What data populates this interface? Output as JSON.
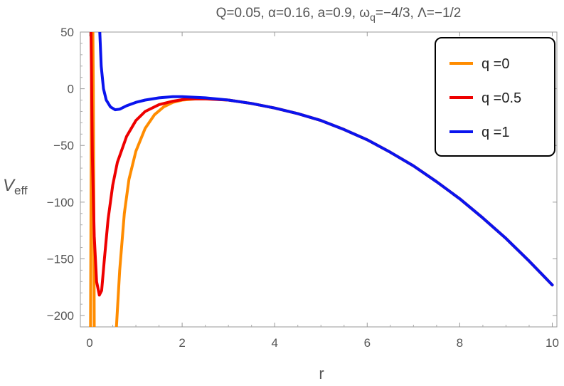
{
  "chart_data": {
    "type": "line",
    "title": "Q=0.05, α=0.16, a=0.9, ω",
    "title_sub": "q",
    "title_tail": "=−4/3, Λ=−1/2",
    "xlabel": "r",
    "ylabel": "V",
    "ylabel_sub": "eff",
    "xlim": [
      -0.2,
      10.1
    ],
    "ylim": [
      -210,
      50
    ],
    "x_ticks": [
      0,
      2,
      4,
      6,
      8,
      10
    ],
    "x_tick_labels": [
      "0",
      "2",
      "4",
      "6",
      "8",
      "10"
    ],
    "y_ticks": [
      50,
      0,
      -50,
      -100,
      -150,
      -200
    ],
    "y_tick_labels": [
      "50",
      "0",
      "−50",
      "−100",
      "−150",
      "−200"
    ],
    "legend_position": "top-right",
    "series": [
      {
        "name": "q =0",
        "color": "#ff8c00",
        "segments": [
          [
            [
              0.02,
              -210
            ],
            [
              0.03,
              -100
            ],
            [
              0.04,
              0
            ],
            [
              0.05,
              50
            ]
          ],
          [
            [
              0.07,
              50
            ],
            [
              0.08,
              0
            ],
            [
              0.09,
              -100
            ],
            [
              0.1,
              -210
            ]
          ],
          [
            [
              0.58,
              -210
            ],
            [
              0.65,
              -160
            ],
            [
              0.75,
              -110
            ],
            [
              0.85,
              -80
            ],
            [
              1.0,
              -55
            ],
            [
              1.2,
              -35
            ],
            [
              1.4,
              -23
            ],
            [
              1.6,
              -16
            ],
            [
              1.8,
              -12
            ],
            [
              2.0,
              -10
            ],
            [
              2.3,
              -9
            ],
            [
              2.6,
              -9
            ],
            [
              3.0,
              -10
            ],
            [
              3.5,
              -13
            ],
            [
              4.0,
              -17
            ],
            [
              4.5,
              -22
            ],
            [
              5.0,
              -28
            ],
            [
              5.5,
              -36
            ],
            [
              6.0,
              -45
            ],
            [
              6.5,
              -56
            ],
            [
              7.0,
              -68
            ],
            [
              7.5,
              -82
            ],
            [
              8.0,
              -97
            ],
            [
              8.5,
              -114
            ],
            [
              9.0,
              -132
            ],
            [
              9.5,
              -152
            ],
            [
              10.0,
              -173
            ]
          ]
        ]
      },
      {
        "name": "q =0.5",
        "color": "#ee0000",
        "segments": [
          [
            [
              0.03,
              50
            ],
            [
              0.06,
              -60
            ],
            [
              0.1,
              -130
            ],
            [
              0.15,
              -170
            ],
            [
              0.21,
              -182
            ],
            [
              0.26,
              -178
            ],
            [
              0.32,
              -150
            ],
            [
              0.4,
              -115
            ],
            [
              0.5,
              -85
            ],
            [
              0.6,
              -65
            ],
            [
              0.8,
              -42
            ],
            [
              1.0,
              -28
            ],
            [
              1.2,
              -20
            ],
            [
              1.5,
              -14
            ],
            [
              1.8,
              -11
            ],
            [
              2.1,
              -9
            ],
            [
              2.5,
              -9
            ],
            [
              3.0,
              -10
            ],
            [
              3.5,
              -13
            ],
            [
              4.0,
              -17
            ],
            [
              4.5,
              -22
            ],
            [
              5.0,
              -28
            ],
            [
              5.5,
              -36
            ],
            [
              6.0,
              -45
            ],
            [
              6.5,
              -56
            ],
            [
              7.0,
              -68
            ],
            [
              7.5,
              -82
            ],
            [
              8.0,
              -97
            ],
            [
              8.5,
              -114
            ],
            [
              9.0,
              -132
            ],
            [
              9.5,
              -152
            ],
            [
              10.0,
              -173
            ]
          ]
        ]
      },
      {
        "name": "q =1",
        "color": "#0a14ee",
        "segments": [
          [
            [
              0.22,
              50
            ],
            [
              0.25,
              20
            ],
            [
              0.3,
              0
            ],
            [
              0.36,
              -10
            ],
            [
              0.45,
              -16
            ],
            [
              0.55,
              -18.5
            ],
            [
              0.65,
              -18
            ],
            [
              0.8,
              -15
            ],
            [
              1.0,
              -12
            ],
            [
              1.2,
              -10
            ],
            [
              1.5,
              -8
            ],
            [
              1.8,
              -7
            ],
            [
              2.0,
              -7
            ],
            [
              2.5,
              -8
            ],
            [
              3.0,
              -10
            ],
            [
              3.5,
              -13
            ],
            [
              4.0,
              -17
            ],
            [
              4.5,
              -22
            ],
            [
              5.0,
              -28
            ],
            [
              5.5,
              -36
            ],
            [
              6.0,
              -45
            ],
            [
              6.5,
              -56
            ],
            [
              7.0,
              -68
            ],
            [
              7.5,
              -82
            ],
            [
              8.0,
              -97
            ],
            [
              8.5,
              -114
            ],
            [
              9.0,
              -132
            ],
            [
              9.5,
              -152
            ],
            [
              10.0,
              -173
            ]
          ]
        ]
      }
    ]
  }
}
